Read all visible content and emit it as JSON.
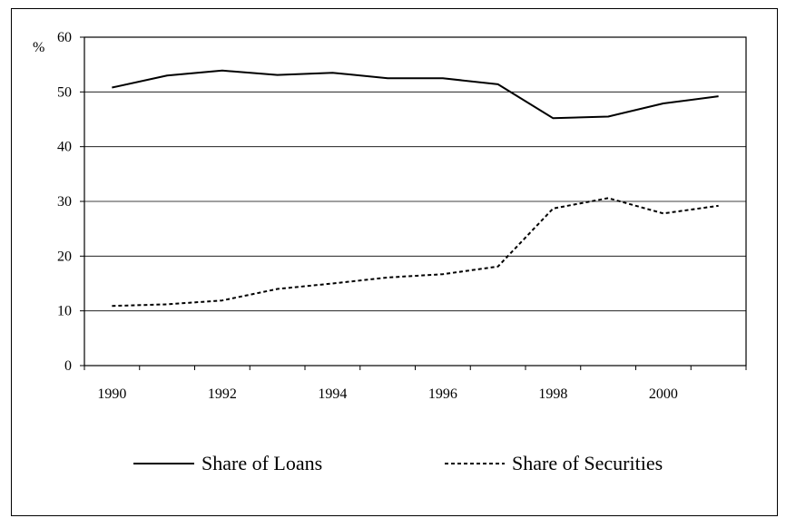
{
  "chart_data": {
    "type": "line",
    "title": "",
    "ylabel": "%",
    "xlabel": "",
    "x": [
      1990,
      1991,
      1992,
      1993,
      1994,
      1995,
      1996,
      1997,
      1998,
      1999,
      2000,
      2001
    ],
    "x_tick_labels": [
      "1990",
      "1992",
      "1994",
      "1996",
      "1998",
      "2000"
    ],
    "x_tick_values": [
      1990,
      1992,
      1994,
      1996,
      1998,
      2000
    ],
    "ylim": [
      0,
      60
    ],
    "y_ticks": [
      0,
      10,
      20,
      30,
      40,
      50,
      60
    ],
    "grid": "horizontal",
    "legend_position": "bottom",
    "series": [
      {
        "name": "Share of Loans",
        "style": "solid",
        "color": "#000000",
        "values": [
          50.8,
          53.0,
          53.9,
          53.1,
          53.5,
          52.5,
          52.5,
          51.4,
          45.2,
          45.5,
          47.9,
          49.2
        ]
      },
      {
        "name": "Share of Securities",
        "style": "dotted",
        "color": "#000000",
        "values": [
          10.9,
          11.2,
          11.9,
          14.0,
          15.0,
          16.1,
          16.7,
          18.1,
          28.7,
          30.6,
          27.8,
          29.2
        ]
      }
    ]
  }
}
